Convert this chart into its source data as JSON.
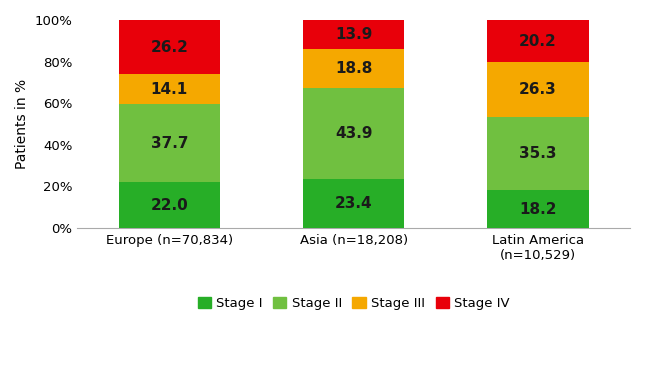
{
  "categories": [
    "Europe (n=70,834)",
    "Asia (n=18,208)",
    "Latin America\n(n=10,529)"
  ],
  "stage_I": [
    22.0,
    23.4,
    18.2
  ],
  "stage_II": [
    37.7,
    43.9,
    35.3
  ],
  "stage_III": [
    14.1,
    18.8,
    26.3
  ],
  "stage_IV": [
    26.2,
    13.9,
    20.2
  ],
  "colors": {
    "stage_I": "#27ae27",
    "stage_II": "#70c040",
    "stage_III": "#f5a800",
    "stage_IV": "#e8000a"
  },
  "ylabel": "Patients in %",
  "yticks": [
    0,
    20,
    40,
    60,
    80,
    100
  ],
  "yticklabels": [
    "0%",
    "20%",
    "40%",
    "60%",
    "80%",
    "100%"
  ],
  "legend_labels": [
    "Stage I",
    "Stage II",
    "Stage III",
    "Stage IV"
  ],
  "bar_width": 0.55,
  "text_color": "#1a1a1a",
  "label_fontsize": 11
}
